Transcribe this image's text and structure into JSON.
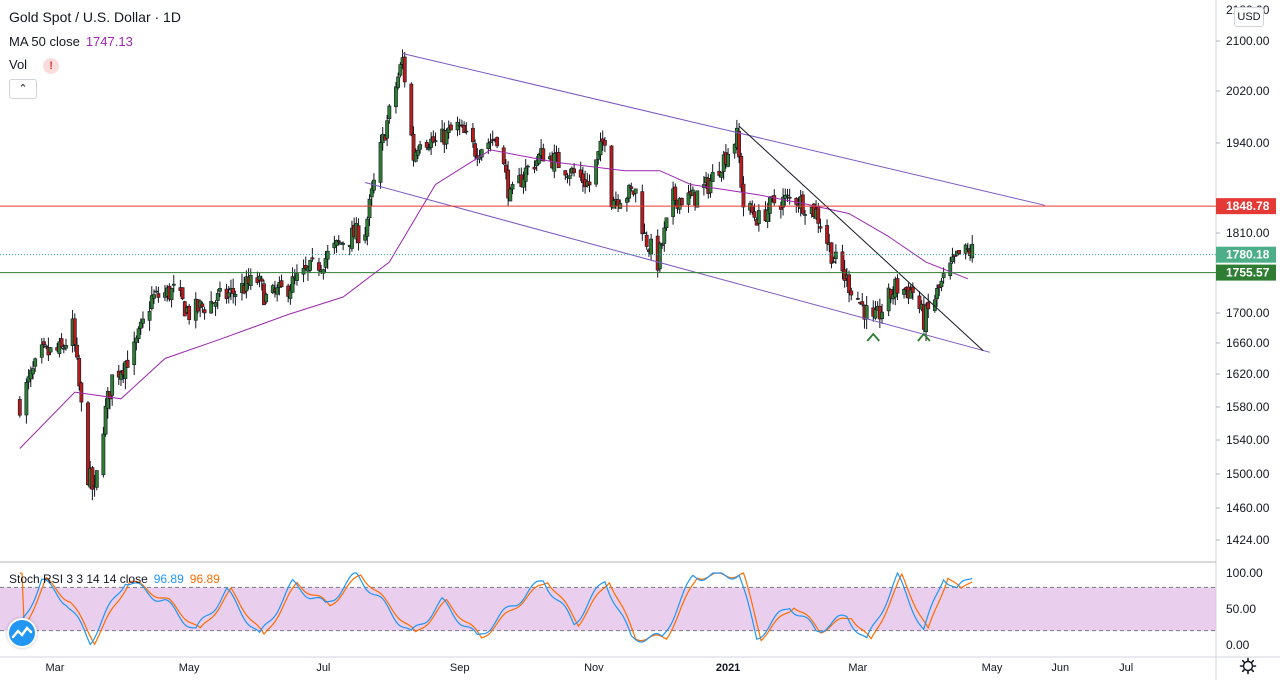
{
  "header": {
    "symbol": "Gold Spot / U.S. Dollar · 1D",
    "ma_label": "MA 50 close",
    "ma_value": "1747.13",
    "vol_label": "Vol",
    "alert_glyph": "!",
    "collapse_glyph": "⌃",
    "currency": "USD"
  },
  "colors": {
    "up": "#26a69a",
    "down": "#ef5350",
    "candle_up_fill": "#2e7d32",
    "candle_down_fill": "#b71c1c",
    "ma": "#9c27b0",
    "channel": "#7e57c2",
    "resistance": "#e53935",
    "support": "#2e7d32",
    "last_price": "#26a69a",
    "stoch_k": "#2196f3",
    "stoch_d": "#ff6d00",
    "stoch_band": "#e1bee7"
  },
  "chart_data": {
    "type": "candlestick",
    "symbol": "Gold Spot / U.S. Dollar",
    "interval": "1D",
    "currency": "USD",
    "x_labels": [
      "Mar",
      "May",
      "Jul",
      "Sep",
      "Nov",
      "2021",
      "Mar",
      "May",
      "Jun",
      "Jul"
    ],
    "x_range": [
      "2020-02-15",
      "2021-07-30"
    ],
    "y_ticks": [
      1424,
      1460,
      1500,
      1540,
      1580,
      1620,
      1660,
      1700,
      1810,
      1940,
      2020,
      2100
    ],
    "y_tick_labels": [
      "1424.00",
      "1460.00",
      "1500.00",
      "1540.00",
      "1580.00",
      "1620.00",
      "1660.00",
      "1700.00",
      "1810.00",
      "1940.00",
      "2020.00",
      "2100.00"
    ],
    "price_series": [
      [
        "2020-02-14",
        1585
      ],
      [
        "2020-02-24",
        1645
      ],
      [
        "2020-03-04",
        1650
      ],
      [
        "2020-03-09",
        1680
      ],
      [
        "2020-03-16",
        1500
      ],
      [
        "2020-03-19",
        1475
      ],
      [
        "2020-03-23",
        1560
      ],
      [
        "2020-03-27",
        1615
      ],
      [
        "2020-04-06",
        1650
      ],
      [
        "2020-04-14",
        1720
      ],
      [
        "2020-04-24",
        1730
      ],
      [
        "2020-05-01",
        1700
      ],
      [
        "2020-05-15",
        1720
      ],
      [
        "2020-05-22",
        1730
      ],
      [
        "2020-06-01",
        1745
      ],
      [
        "2020-06-05",
        1720
      ],
      [
        "2020-06-12",
        1730
      ],
      [
        "2020-06-19",
        1745
      ],
      [
        "2020-06-30",
        1770
      ],
      [
        "2020-07-10",
        1800
      ],
      [
        "2020-07-20",
        1815
      ],
      [
        "2020-07-27",
        1930
      ],
      [
        "2020-08-06",
        2070
      ],
      [
        "2020-08-11",
        1920
      ],
      [
        "2020-08-14",
        1950
      ],
      [
        "2020-08-21",
        1940
      ],
      [
        "2020-08-31",
        1965
      ],
      [
        "2020-09-08",
        1930
      ],
      [
        "2020-09-18",
        1950
      ],
      [
        "2020-09-24",
        1860
      ],
      [
        "2020-10-01",
        1900
      ],
      [
        "2020-10-09",
        1925
      ],
      [
        "2020-10-19",
        1905
      ],
      [
        "2020-10-30",
        1880
      ],
      [
        "2020-11-06",
        1950
      ],
      [
        "2020-11-09",
        1860
      ],
      [
        "2020-11-20",
        1870
      ],
      [
        "2020-11-24",
        1805
      ],
      [
        "2020-11-30",
        1770
      ],
      [
        "2020-12-07",
        1860
      ],
      [
        "2020-12-16",
        1860
      ],
      [
        "2020-12-23",
        1880
      ],
      [
        "2021-01-05",
        1950
      ],
      [
        "2021-01-08",
        1850
      ],
      [
        "2021-01-15",
        1830
      ],
      [
        "2021-01-22",
        1855
      ],
      [
        "2021-02-01",
        1860
      ],
      [
        "2021-02-10",
        1840
      ],
      [
        "2021-02-18",
        1775
      ],
      [
        "2021-02-26",
        1735
      ],
      [
        "2021-03-08",
        1685
      ],
      [
        "2021-03-18",
        1735
      ],
      [
        "2021-03-26",
        1730
      ],
      [
        "2021-03-31",
        1690
      ],
      [
        "2021-04-09",
        1745
      ],
      [
        "2021-04-16",
        1780
      ],
      [
        "2021-04-22",
        1785
      ]
    ],
    "ma50_series": [
      [
        "2020-02-14",
        1530
      ],
      [
        "2020-03-10",
        1598
      ],
      [
        "2020-03-31",
        1590
      ],
      [
        "2020-04-20",
        1640
      ],
      [
        "2020-05-15",
        1665
      ],
      [
        "2020-06-15",
        1698
      ],
      [
        "2020-07-10",
        1722
      ],
      [
        "2020-07-31",
        1770
      ],
      [
        "2020-08-21",
        1880
      ],
      [
        "2020-09-15",
        1930
      ],
      [
        "2020-10-15",
        1912
      ],
      [
        "2020-11-15",
        1900
      ],
      [
        "2020-12-01",
        1900
      ],
      [
        "2020-12-15",
        1880
      ],
      [
        "2021-01-15",
        1865
      ],
      [
        "2021-02-05",
        1852
      ],
      [
        "2021-02-25",
        1838
      ],
      [
        "2021-03-15",
        1805
      ],
      [
        "2021-04-01",
        1770
      ],
      [
        "2021-04-20",
        1747
      ]
    ],
    "ma_value": 1747.13,
    "last_price": 1780.18,
    "resistance": 1848.78,
    "support": 1755.57,
    "channel_upper": [
      [
        "2020-08-06",
        2080
      ],
      [
        "2021-05-25",
        1850
      ]
    ],
    "channel_lower": [
      [
        "2020-07-20",
        1883
      ],
      [
        "2021-04-30",
        1648
      ]
    ],
    "trendline": [
      [
        "2021-01-06",
        1966
      ],
      [
        "2021-04-27",
        1650
      ]
    ],
    "markers": [
      [
        "2021-03-08",
        1668,
        "up-arrow"
      ],
      [
        "2021-03-31",
        1668,
        "up-arrow"
      ]
    ],
    "price_labels": [
      "1848.78",
      "1780.18",
      "1755.57"
    ],
    "indicator": {
      "name": "Stoch RSI 3 3 14 14 close",
      "k_value": "96.89",
      "d_value": "96.89",
      "y_ticks": [
        "100.00",
        "50.00",
        "0.00"
      ],
      "band": [
        20,
        80
      ],
      "series_k": [
        [
          "2020-02-14",
          25
        ],
        [
          "2020-02-24",
          90
        ],
        [
          "2020-03-06",
          60
        ],
        [
          "2020-03-17",
          5
        ],
        [
          "2020-04-02",
          90
        ],
        [
          "2020-04-20",
          60
        ],
        [
          "2020-05-04",
          20
        ],
        [
          "2020-05-18",
          75
        ],
        [
          "2020-06-02",
          12
        ],
        [
          "2020-06-17",
          85
        ],
        [
          "2020-07-02",
          55
        ],
        [
          "2020-07-16",
          98
        ],
        [
          "2020-08-10",
          15
        ],
        [
          "2020-08-24",
          60
        ],
        [
          "2020-09-09",
          10
        ],
        [
          "2020-09-25",
          55
        ],
        [
          "2020-10-09",
          90
        ],
        [
          "2020-10-23",
          30
        ],
        [
          "2020-11-06",
          90
        ],
        [
          "2020-11-18",
          10
        ],
        [
          "2020-12-02",
          10
        ],
        [
          "2020-12-16",
          95
        ],
        [
          "2021-01-06",
          98
        ],
        [
          "2021-01-14",
          10
        ],
        [
          "2021-01-29",
          55
        ],
        [
          "2021-02-10",
          20
        ],
        [
          "2021-02-24",
          40
        ],
        [
          "2021-03-05",
          5
        ],
        [
          "2021-03-19",
          95
        ],
        [
          "2021-03-31",
          20
        ],
        [
          "2021-04-09",
          96
        ],
        [
          "2021-04-15",
          75
        ],
        [
          "2021-04-22",
          97
        ]
      ]
    }
  }
}
